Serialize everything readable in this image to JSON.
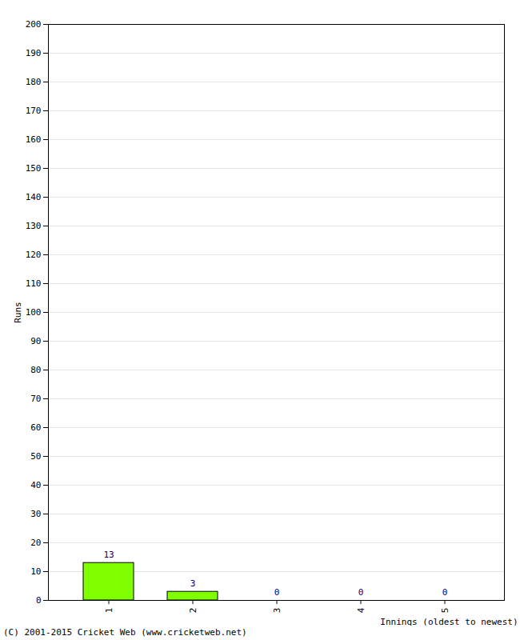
{
  "chart_data": {
    "type": "bar",
    "caption": "(C) 2001-2015 Cricket Web (www.cricketweb.net)",
    "x_label": "Innings (oldest to newest)",
    "y_label": "Runs",
    "categories": [
      "1",
      "2",
      "3",
      "4",
      "5"
    ],
    "values": [
      13,
      3,
      0,
      0,
      0
    ],
    "color": "#80ff00",
    "data_labels": true,
    "grid": true,
    "ylim": [
      0,
      200
    ],
    "yticks": [
      0,
      10,
      20,
      30,
      40,
      50,
      60,
      70,
      80,
      90,
      100,
      110,
      120,
      130,
      140,
      150,
      160,
      170,
      180,
      190,
      200
    ]
  }
}
